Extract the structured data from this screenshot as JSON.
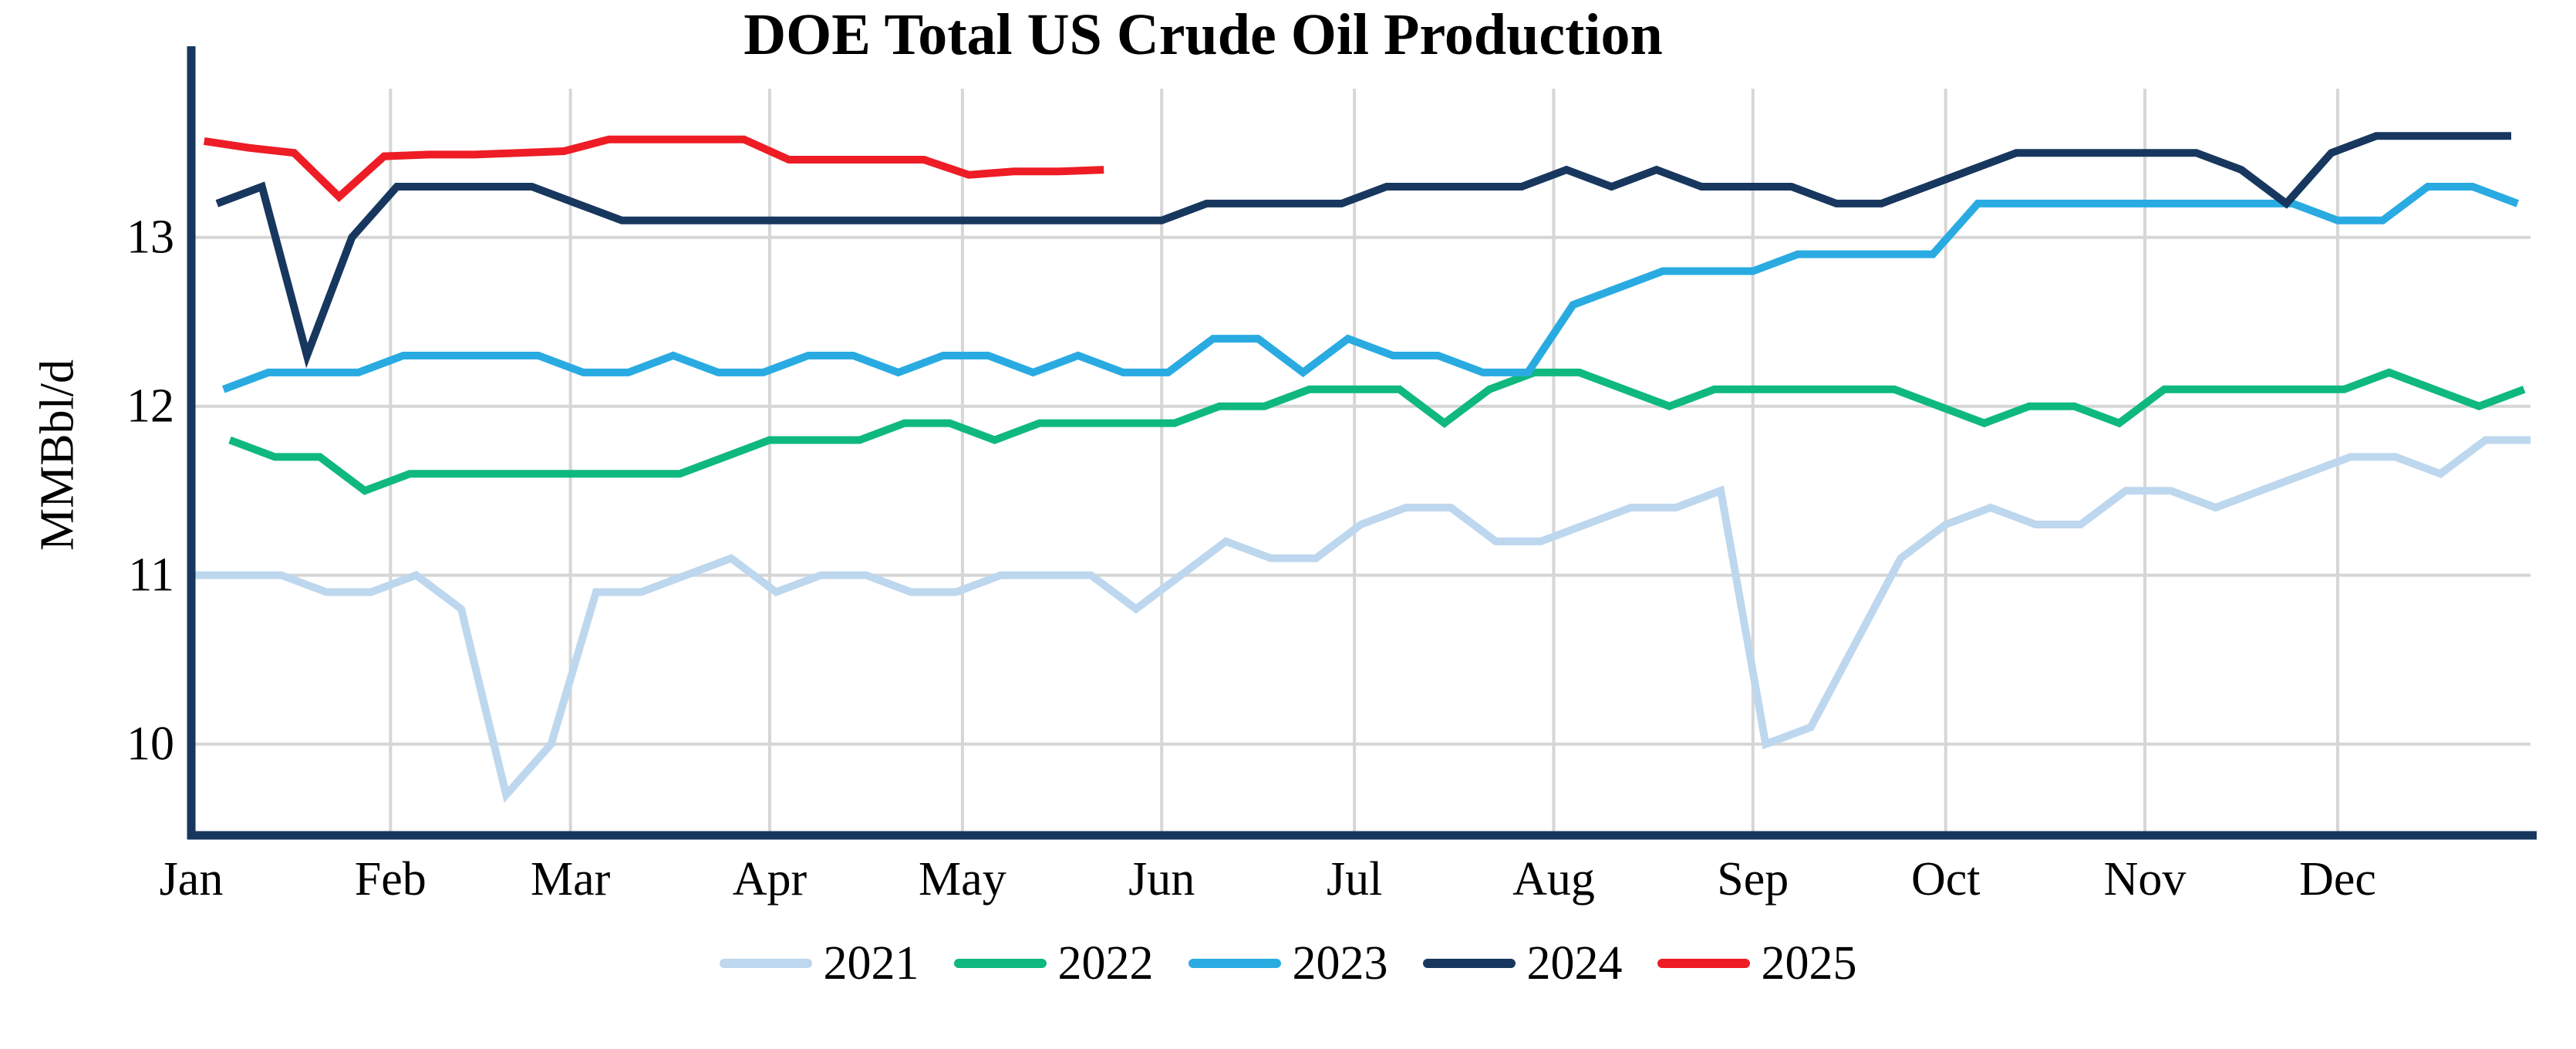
{
  "chart_data": {
    "type": "line",
    "title": "DOE Total US Crude Oil Production",
    "ylabel": "MMBbl/d",
    "xlabel": "",
    "x_unit": "weekly data, week-ending day of year",
    "x_tick_labels": [
      "Jan",
      "Feb",
      "Mar",
      "Apr",
      "May",
      "Jun",
      "Jul",
      "Aug",
      "Sep",
      "Oct",
      "Nov",
      "Dec"
    ],
    "y_ticks": [
      10,
      11,
      12,
      13
    ],
    "y_range": [
      9.46,
      13.88
    ],
    "grid": true,
    "grid_color": "#D6D6D6",
    "axis_color": "#17375E",
    "legend_position": "bottom-center",
    "series": [
      {
        "name": "2021",
        "color": "#BDD7EE",
        "first_week_day": 1,
        "values": [
          11.0,
          11.0,
          11.0,
          10.9,
          10.9,
          11.0,
          10.8,
          9.7,
          10.0,
          10.9,
          10.9,
          11.0,
          11.1,
          10.9,
          11.0,
          11.0,
          10.9,
          10.9,
          11.0,
          11.0,
          11.0,
          10.8,
          11.0,
          11.2,
          11.1,
          11.1,
          11.3,
          11.4,
          11.4,
          11.2,
          11.2,
          11.3,
          11.4,
          11.4,
          11.5,
          10.0,
          10.1,
          10.6,
          11.1,
          11.3,
          11.4,
          11.3,
          11.3,
          11.5,
          11.5,
          11.4,
          11.5,
          11.6,
          11.7,
          11.7,
          11.6,
          11.8,
          11.8
        ]
      },
      {
        "name": "2022",
        "color": "#0FB87F",
        "first_week_day": 7,
        "values": [
          11.8,
          11.7,
          11.7,
          11.5,
          11.6,
          11.6,
          11.6,
          11.6,
          11.6,
          11.6,
          11.6,
          11.7,
          11.8,
          11.8,
          11.8,
          11.9,
          11.9,
          11.8,
          11.9,
          11.9,
          11.9,
          11.9,
          12.0,
          12.0,
          12.1,
          12.1,
          12.1,
          11.9,
          12.1,
          12.2,
          12.2,
          12.1,
          12.0,
          12.1,
          12.1,
          12.1,
          12.1,
          12.1,
          12.0,
          11.9,
          12.0,
          12.0,
          11.9,
          12.1,
          12.1,
          12.1,
          12.1,
          12.1,
          12.2,
          12.1,
          12.0,
          12.1
        ]
      },
      {
        "name": "2023",
        "color": "#29ABE2",
        "first_week_day": 6,
        "values": [
          12.1,
          12.2,
          12.2,
          12.2,
          12.3,
          12.3,
          12.3,
          12.3,
          12.2,
          12.2,
          12.3,
          12.2,
          12.2,
          12.3,
          12.3,
          12.2,
          12.3,
          12.3,
          12.2,
          12.3,
          12.2,
          12.2,
          12.4,
          12.4,
          12.2,
          12.4,
          12.3,
          12.3,
          12.2,
          12.2,
          12.6,
          12.7,
          12.8,
          12.8,
          12.8,
          12.9,
          12.9,
          12.9,
          12.9,
          13.2,
          13.2,
          13.2,
          13.2,
          13.2,
          13.2,
          13.2,
          13.2,
          13.1,
          13.1,
          13.3,
          13.3,
          13.2
        ]
      },
      {
        "name": "2024",
        "color": "#17375E",
        "first_week_day": 5,
        "values": [
          13.2,
          13.3,
          12.3,
          13.0,
          13.3,
          13.3,
          13.3,
          13.3,
          13.2,
          13.1,
          13.1,
          13.1,
          13.1,
          13.1,
          13.1,
          13.1,
          13.1,
          13.1,
          13.1,
          13.1,
          13.1,
          13.1,
          13.2,
          13.2,
          13.2,
          13.2,
          13.3,
          13.3,
          13.3,
          13.3,
          13.4,
          13.3,
          13.4,
          13.3,
          13.3,
          13.3,
          13.2,
          13.2,
          13.3,
          13.4,
          13.5,
          13.5,
          13.5,
          13.5,
          13.5,
          13.4,
          13.2,
          13.5,
          13.6,
          13.6,
          13.6,
          13.6
        ]
      },
      {
        "name": "2025",
        "color": "#EE1C25",
        "first_week_day": 3,
        "values": [
          13.57,
          13.53,
          13.5,
          13.24,
          13.48,
          13.49,
          13.49,
          13.5,
          13.51,
          13.58,
          13.58,
          13.58,
          13.58,
          13.46,
          13.46,
          13.46,
          13.46,
          13.37,
          13.39,
          13.39,
          13.4
        ]
      }
    ]
  }
}
